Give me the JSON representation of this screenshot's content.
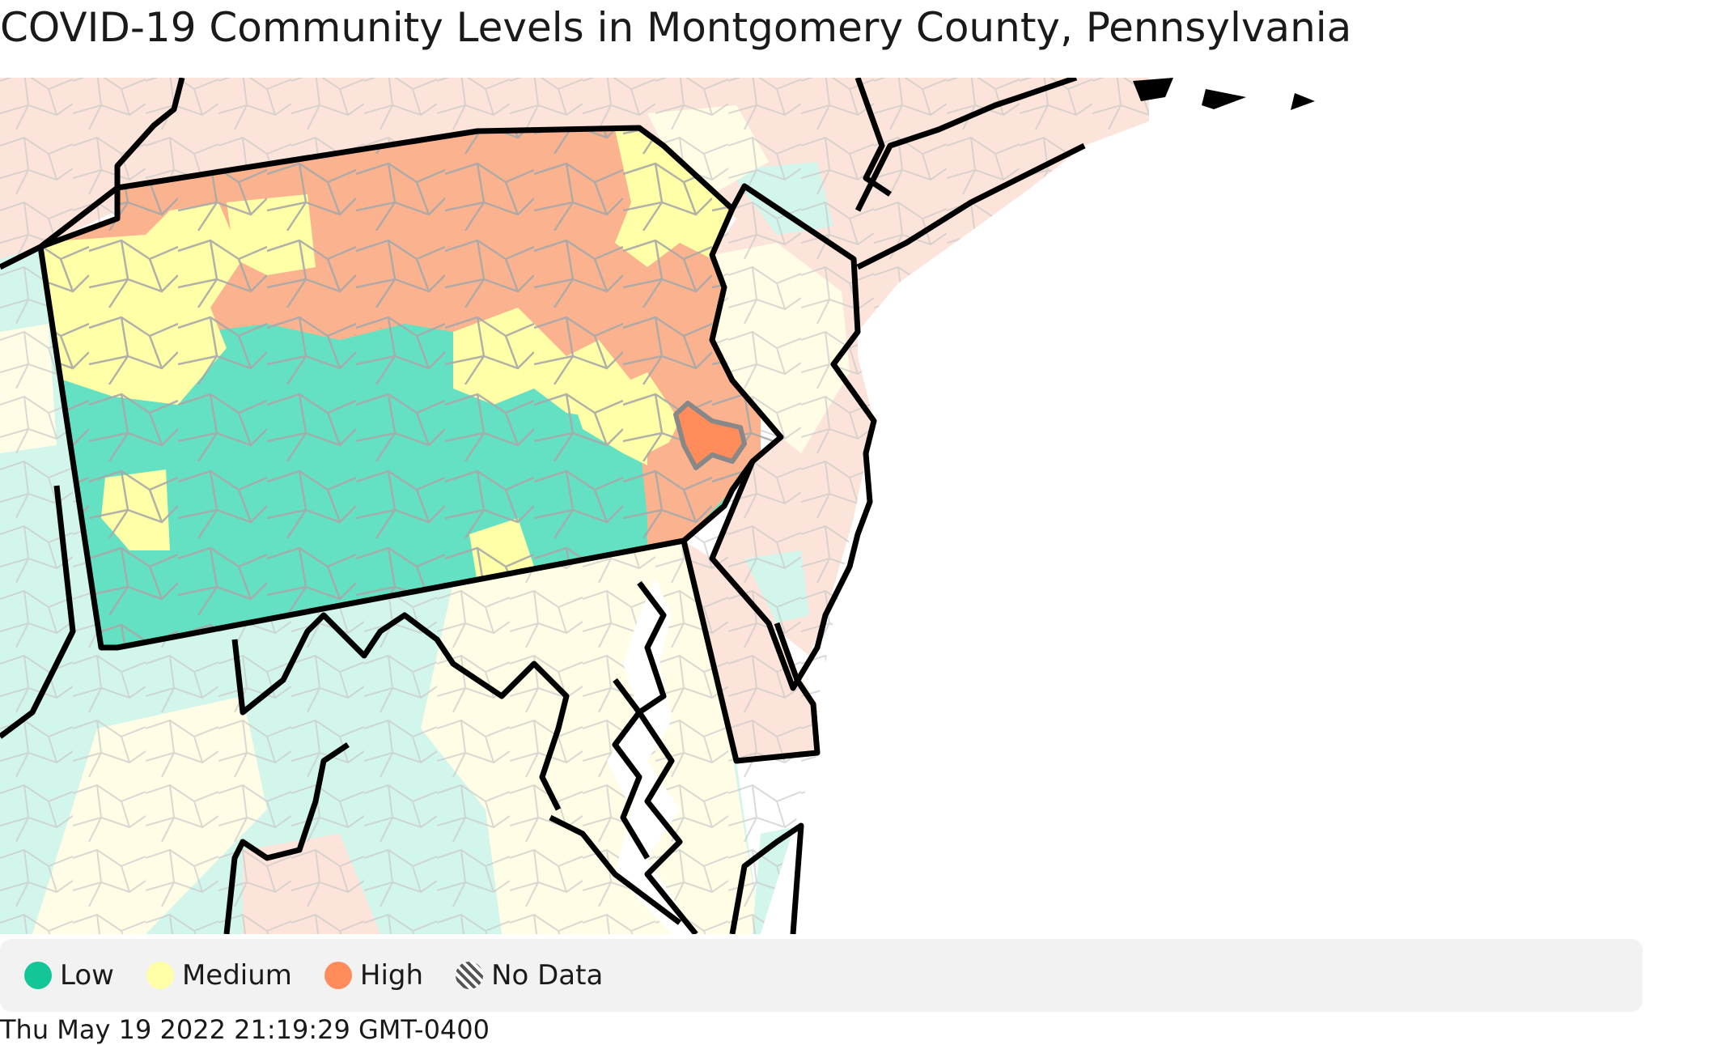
{
  "title": "COVID-19 Community Levels in Montgomery County, Pennsylvania",
  "highlighted_county": "Montgomery County, Pennsylvania",
  "highlighted_level": "High",
  "legend": [
    {
      "key": "low",
      "label": "Low",
      "color": "#13c698"
    },
    {
      "key": "medium",
      "label": "Medium",
      "color": "#ffffa8"
    },
    {
      "key": "high",
      "label": "High",
      "color": "#ff8c5a"
    },
    {
      "key": "nodata",
      "label": "No Data",
      "color": "#666666"
    }
  ],
  "colors": {
    "pa_low": "#64e0c3",
    "pa_medium": "#ffffa8",
    "pa_high": "#fbb38f",
    "faded_low": "#d2f5ec",
    "faded_medium": "#fffde6",
    "faded_high": "#fde4da",
    "highlight": "#ff8c5a",
    "state_border": "#000000",
    "county_border": "#b8b8b8"
  },
  "timestamp": "Thu May 19 2022 21:19:29 GMT-0400"
}
